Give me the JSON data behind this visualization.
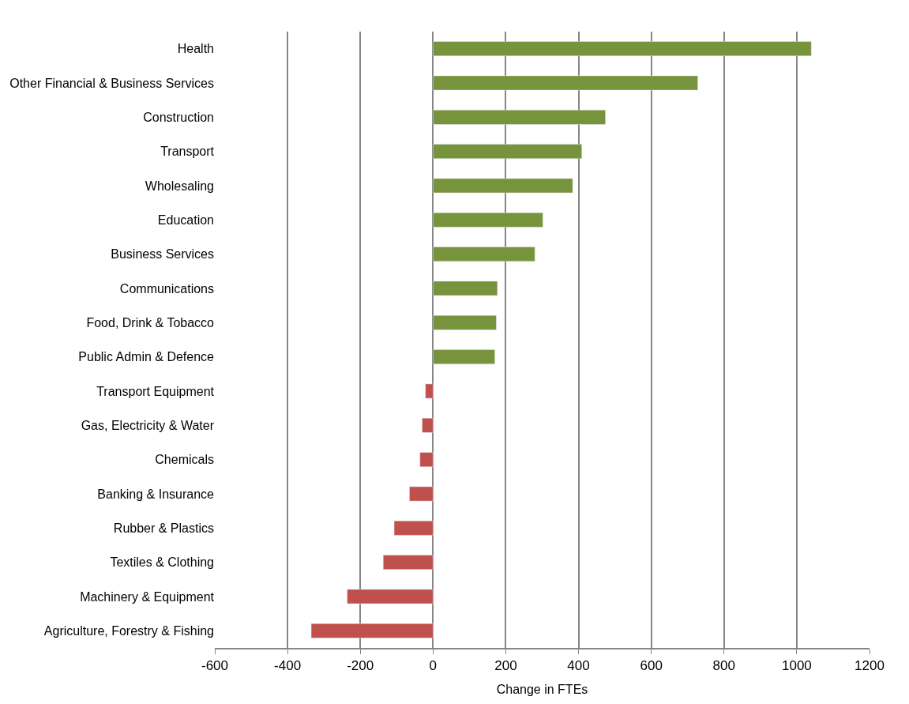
{
  "chart_data": {
    "type": "bar",
    "orientation": "horizontal",
    "xlabel": "Change in FTEs",
    "categories": [
      "Health",
      "Other Financial & Business Services",
      "Construction",
      "Transport",
      "Wholesaling",
      "Education",
      "Business Services",
      "Communications",
      "Food, Drink & Tobacco",
      "Public Admin & Defence",
      "Transport Equipment",
      "Gas, Electricity & Water",
      "Chemicals",
      "Banking & Insurance",
      "Rubber & Plastics",
      "Textiles & Clothing",
      "Machinery & Equipment",
      "Agriculture, Forestry & Fishing"
    ],
    "values": [
      1040,
      728,
      474,
      409,
      384,
      302,
      280,
      177,
      174,
      170,
      -21,
      -30,
      -36,
      -65,
      -107,
      -137,
      -236,
      -335
    ],
    "colors": [
      "#77933c",
      "#77933c",
      "#77933c",
      "#77933c",
      "#77933c",
      "#77933c",
      "#77933c",
      "#77933c",
      "#77933c",
      "#77933c",
      "#c0504d",
      "#c0504d",
      "#c0504d",
      "#c0504d",
      "#c0504d",
      "#c0504d",
      "#c0504d",
      "#c0504d"
    ],
    "xlim": [
      -600,
      1200
    ],
    "xticks": [
      -600,
      -400,
      -200,
      0,
      200,
      400,
      600,
      800,
      1000,
      1200
    ],
    "grid": "x",
    "legend": false
  }
}
